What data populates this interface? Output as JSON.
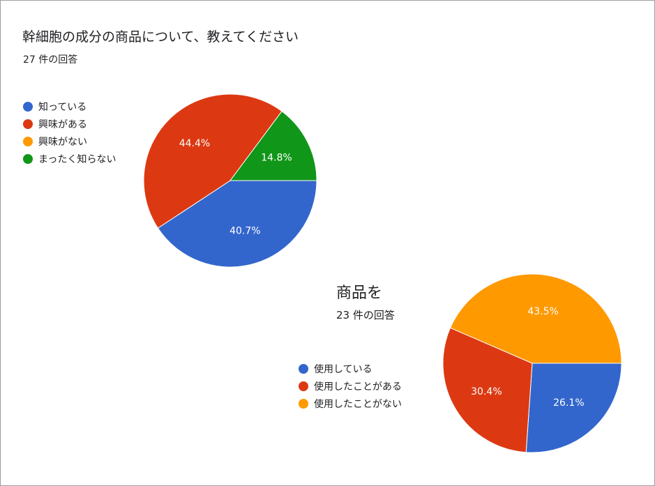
{
  "colors": {
    "blue": "#3366cc",
    "red": "#dc3912",
    "orange": "#ff9900",
    "green": "#109618"
  },
  "chart_data": [
    {
      "type": "pie",
      "title": "幹細胞の成分の商品について、教えてください",
      "subtitle": "27 件の回答",
      "legend_position": "left",
      "categories": [
        "知っている",
        "興味がある",
        "興味がない",
        "まったく知らない"
      ],
      "values": [
        40.7,
        44.4,
        0,
        14.8
      ],
      "labels": [
        "40.7%",
        "44.4%",
        "",
        "14.8%"
      ],
      "colors": [
        "#3366cc",
        "#dc3912",
        "#ff9900",
        "#109618"
      ]
    },
    {
      "type": "pie",
      "title": "商品を",
      "subtitle": "23 件の回答",
      "legend_position": "left",
      "categories": [
        "使用している",
        "使用したことがある",
        "使用したことがない"
      ],
      "values": [
        26.1,
        30.4,
        43.5
      ],
      "labels": [
        "26.1%",
        "30.4%",
        "43.5%"
      ],
      "colors": [
        "#3366cc",
        "#dc3912",
        "#ff9900"
      ]
    }
  ]
}
